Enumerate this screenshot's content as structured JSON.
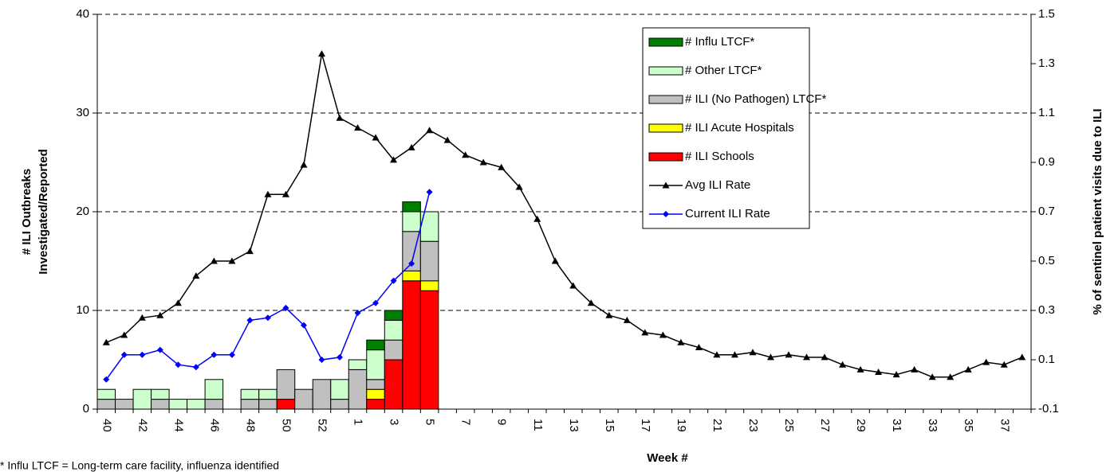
{
  "chart_data": {
    "type": "bar-line",
    "x_label": "Week #",
    "y_label": [
      "# ILI Outbreaks",
      "Investigated/Reported"
    ],
    "y2_label": "% of sentinel patient visits due to ILI",
    "footnote": "* Influ LTCF = Long-term care facility, influenza identified",
    "categories": [
      "40",
      null,
      "42",
      null,
      "44",
      null,
      "46",
      null,
      "48",
      null,
      "50",
      null,
      "52",
      null,
      "1",
      null,
      "3",
      null,
      "5",
      null,
      "7",
      null,
      "9",
      null,
      "11",
      null,
      "13",
      null,
      "15",
      null,
      "17",
      null,
      "19",
      null,
      "21",
      null,
      "23",
      null,
      "25",
      null,
      "27",
      null,
      "29",
      null,
      "31",
      null,
      "33",
      null,
      "35",
      null,
      "37",
      null
    ],
    "ylim": [
      0,
      40
    ],
    "yticks": [
      0,
      10,
      20,
      30,
      40
    ],
    "y2lim": [
      -0.1,
      1.5
    ],
    "y2ticks": [
      -0.1,
      0.1,
      0.3,
      0.5,
      0.7,
      0.9,
      1.1,
      1.3,
      1.5
    ],
    "grid": true,
    "legend": "upper-right",
    "series": [
      {
        "name": "# Influ LTCF*",
        "type": "bar",
        "color": "#008000",
        "values": [
          0,
          0,
          0,
          0,
          0,
          0,
          0,
          0,
          0,
          0,
          0,
          0,
          0,
          0,
          0,
          1,
          1,
          1,
          0,
          null,
          null,
          null,
          null,
          null,
          null,
          null,
          null,
          null,
          null,
          null,
          null,
          null,
          null,
          null,
          null,
          null,
          null,
          null,
          null,
          null,
          null,
          null,
          null,
          null,
          null,
          null,
          null,
          null,
          null,
          null,
          null,
          null
        ]
      },
      {
        "name": "# Other LTCF*",
        "type": "bar",
        "color": "#ccffcc",
        "values": [
          1,
          0,
          2,
          1,
          1,
          1,
          2,
          0,
          1,
          1,
          0,
          0,
          0,
          2,
          1,
          3,
          2,
          2,
          3,
          null,
          null,
          null,
          null,
          null,
          null,
          null,
          null,
          null,
          null,
          null,
          null,
          null,
          null,
          null,
          null,
          null,
          null,
          null,
          null,
          null,
          null,
          null,
          null,
          null,
          null,
          null,
          null,
          null,
          null,
          null,
          null,
          null
        ]
      },
      {
        "name": "# ILI (No Pathogen) LTCF*",
        "type": "bar",
        "color": "#c0c0c0",
        "values": [
          1,
          1,
          0,
          1,
          0,
          0,
          1,
          0,
          1,
          1,
          3,
          2,
          3,
          1,
          4,
          1,
          2,
          4,
          4,
          null,
          null,
          null,
          null,
          null,
          null,
          null,
          null,
          null,
          null,
          null,
          null,
          null,
          null,
          null,
          null,
          null,
          null,
          null,
          null,
          null,
          null,
          null,
          null,
          null,
          null,
          null,
          null,
          null,
          null,
          null,
          null,
          null
        ]
      },
      {
        "name": "# ILI Acute Hospitals",
        "type": "bar",
        "color": "#ffff00",
        "values": [
          0,
          0,
          0,
          0,
          0,
          0,
          0,
          0,
          0,
          0,
          0,
          0,
          0,
          0,
          0,
          1,
          0,
          1,
          1,
          null,
          null,
          null,
          null,
          null,
          null,
          null,
          null,
          null,
          null,
          null,
          null,
          null,
          null,
          null,
          null,
          null,
          null,
          null,
          null,
          null,
          null,
          null,
          null,
          null,
          null,
          null,
          null,
          null,
          null,
          null,
          null,
          null
        ]
      },
      {
        "name": "# ILI Schools",
        "type": "bar",
        "color": "#ff0000",
        "values": [
          0,
          0,
          0,
          0,
          0,
          0,
          0,
          0,
          0,
          0,
          1,
          0,
          0,
          0,
          0,
          1,
          5,
          13,
          12,
          null,
          null,
          null,
          null,
          null,
          null,
          null,
          null,
          null,
          null,
          null,
          null,
          null,
          null,
          null,
          null,
          null,
          null,
          null,
          null,
          null,
          null,
          null,
          null,
          null,
          null,
          null,
          null,
          null,
          null,
          null,
          null,
          null
        ]
      },
      {
        "name": "Avg ILI Rate",
        "type": "line",
        "axis": "y2",
        "color": "#000000",
        "marker": "triangle",
        "values": [
          0.17,
          0.2,
          0.27,
          0.28,
          0.33,
          0.44,
          0.5,
          0.5,
          0.54,
          0.77,
          0.77,
          0.89,
          1.34,
          1.08,
          1.04,
          1.0,
          0.91,
          0.96,
          1.03,
          0.99,
          0.93,
          0.9,
          0.88,
          0.8,
          0.67,
          0.5,
          0.4,
          0.33,
          0.28,
          0.26,
          0.21,
          0.2,
          0.17,
          0.15,
          0.12,
          0.12,
          0.13,
          0.11,
          0.12,
          0.11,
          0.11,
          0.08,
          0.06,
          0.05,
          0.04,
          0.06,
          0.03,
          0.03,
          0.06,
          0.09,
          0.08,
          0.11
        ]
      },
      {
        "name": "Current ILI Rate",
        "type": "line",
        "axis": "y2",
        "color": "#0000ff",
        "marker": "diamond",
        "values": [
          0.02,
          0.12,
          0.12,
          0.14,
          0.08,
          0.07,
          0.12,
          0.12,
          0.26,
          0.27,
          0.31,
          0.24,
          0.1,
          0.11,
          0.29,
          0.33,
          0.42,
          0.49,
          0.78,
          null,
          null,
          null,
          null,
          null,
          null,
          null,
          null,
          null,
          null,
          null,
          null,
          null,
          null,
          null,
          null,
          null,
          null,
          null,
          null,
          null,
          null,
          null,
          null,
          null,
          null,
          null,
          null,
          null,
          null,
          null,
          null,
          null
        ]
      }
    ]
  }
}
